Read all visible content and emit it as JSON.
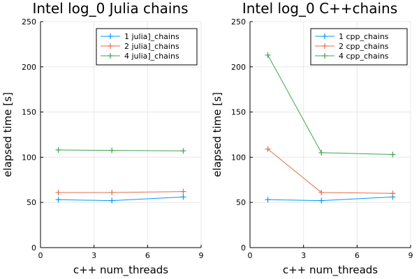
{
  "chart_data": [
    {
      "type": "line",
      "title": "Intel log_0 Julia chains",
      "xlabel": "c++ num_threads",
      "ylabel": "elapsed time [s]",
      "xlim": [
        0,
        9
      ],
      "ylim": [
        0,
        250
      ],
      "xticks": [
        0,
        3,
        6,
        9
      ],
      "yticks": [
        0,
        50,
        100,
        150,
        200,
        250
      ],
      "grid": true,
      "legend_position": "top-right",
      "series": [
        {
          "name": "1 julia]_chains",
          "color": "#009af9",
          "x": [
            1,
            4,
            8
          ],
          "y": [
            53,
            52,
            56
          ]
        },
        {
          "name": "2 julia]_chains",
          "color": "#e26f46",
          "x": [
            1,
            4,
            8
          ],
          "y": [
            61,
            61,
            62
          ]
        },
        {
          "name": "4 julia]_chains",
          "color": "#3da44d",
          "x": [
            1,
            4,
            8
          ],
          "y": [
            108,
            107.5,
            107
          ]
        }
      ]
    },
    {
      "type": "line",
      "title": "Intel log_0 C++chains",
      "xlabel": "c++ num_threads",
      "ylabel": "elapsed time [s]",
      "xlim": [
        0,
        9
      ],
      "ylim": [
        0,
        250
      ],
      "xticks": [
        0,
        3,
        6,
        9
      ],
      "yticks": [
        0,
        50,
        100,
        150,
        200,
        250
      ],
      "grid": true,
      "legend_position": "top-right",
      "series": [
        {
          "name": "1 cpp_chains",
          "color": "#009af9",
          "x": [
            1,
            4,
            8
          ],
          "y": [
            53,
            52,
            56
          ]
        },
        {
          "name": "2 cpp_chains",
          "color": "#e26f46",
          "x": [
            1,
            4,
            8
          ],
          "y": [
            109,
            61,
            60
          ]
        },
        {
          "name": "4 cpp_chains",
          "color": "#3da44d",
          "x": [
            1,
            4,
            8
          ],
          "y": [
            213,
            105,
            103
          ]
        }
      ]
    }
  ]
}
